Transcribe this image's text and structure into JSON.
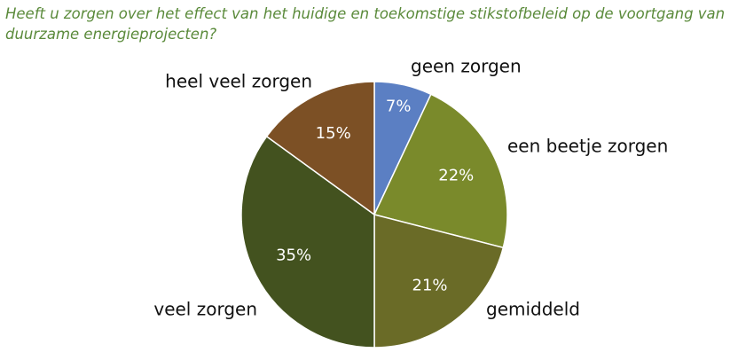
{
  "chart_data": {
    "type": "pie",
    "title": "Heeft u zorgen over het effect van het huidige en toekomstige stikstofbeleid op de voortgang van  duurzame energieprojecten?",
    "categories": [
      "geen zorgen",
      "een beetje zorgen",
      "gemiddeld",
      "veel zorgen",
      "heel veel zorgen"
    ],
    "values": [
      7,
      22,
      21,
      35,
      15
    ],
    "value_labels": [
      "7%",
      "22%",
      "21%",
      "35%",
      "15%"
    ],
    "colors": [
      "#5b7fc3",
      "#7a8a2b",
      "#6a6b27",
      "#43521f",
      "#7c5025"
    ]
  }
}
